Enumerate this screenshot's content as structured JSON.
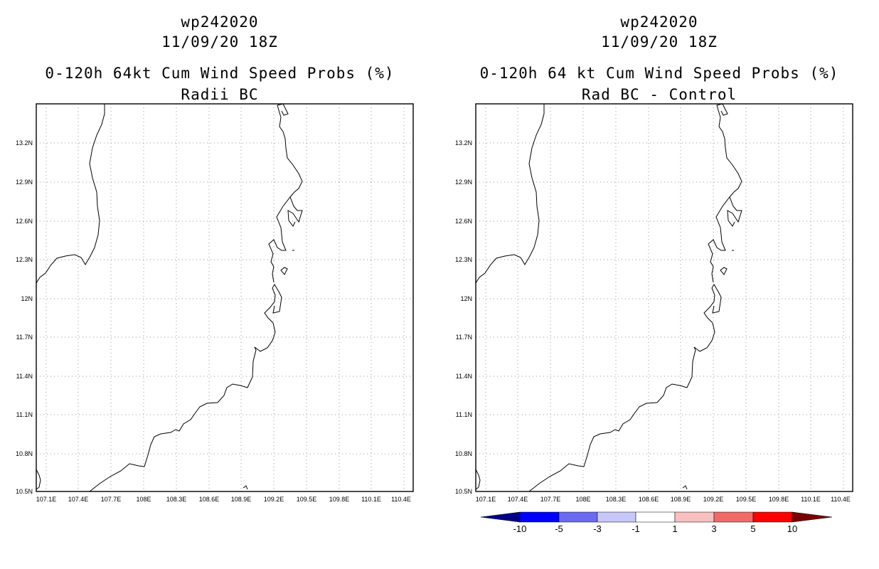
{
  "panels": [
    {
      "id": "left",
      "title_line1": "wp242020",
      "title_line2": "11/09/20 18Z",
      "title_line3": "0-120h 64kt Cum Wind Speed Probs (%)",
      "title_line4": "Radii BC"
    },
    {
      "id": "right",
      "title_line1": "wp242020",
      "title_line2": "11/09/20 18Z",
      "title_line3": "0-120h 64 kt Cum Wind Speed Probs (%)",
      "title_line4": "Rad BC - Control"
    }
  ],
  "lat_labels": [
    "13.2N",
    "12.9N",
    "12.6N",
    "12.3N",
    "12N",
    "11.7N",
    "11.4N",
    "11.1N",
    "10.8N",
    "10.5N"
  ],
  "lon_labels": [
    "107.1E",
    "107.4E",
    "107.7E",
    "108E",
    "108.3E",
    "108.6E",
    "108.9E",
    "109.2E",
    "109.5E",
    "109.8E",
    "110.1E",
    "110.4E"
  ],
  "colorbar": {
    "labels": [
      "-10",
      "-5",
      "-3",
      "-1",
      "1",
      "3",
      "5",
      "10"
    ],
    "colors": [
      "#00008b",
      "#0000ff",
      "#6a6af0",
      "#c8c8f8",
      "#ffffff",
      "#f8c0c0",
      "#f06a6a",
      "#ff0000",
      "#7a0000"
    ]
  }
}
